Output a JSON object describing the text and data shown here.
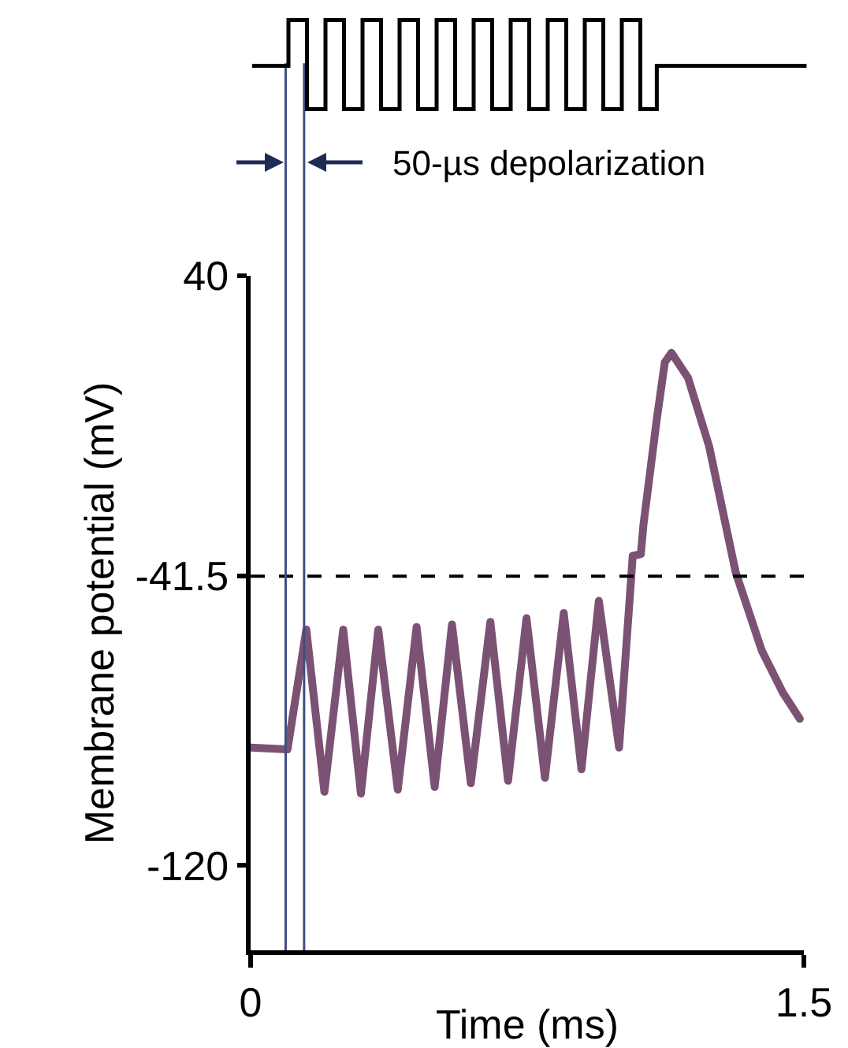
{
  "chart_data": {
    "type": "line",
    "xlabel": "Time (ms)",
    "ylabel": "Membrane potential (mV)",
    "x": [
      0,
      0.1,
      0.151,
      0.2,
      0.251,
      0.299,
      0.346,
      0.399,
      0.45,
      0.499,
      0.546,
      0.597,
      0.65,
      0.698,
      0.748,
      0.798,
      0.849,
      0.897,
      0.944,
      0.999,
      1.036,
      1.058,
      1.065,
      1.101,
      1.123,
      1.141,
      1.186,
      1.243,
      1.315,
      1.386,
      1.443,
      1.489
    ],
    "series": [
      {
        "color": "#7b5274",
        "values": [
          -88,
          -88.5,
          -56,
          -100,
          -56,
          -100.5,
          -56,
          -99.4,
          -55.3,
          -98.7,
          -54.6,
          -97.7,
          -53.9,
          -97,
          -52.9,
          -96.2,
          -51.5,
          -93.9,
          -48.2,
          -88,
          -36,
          -35.5,
          -27.6,
          0.9,
          16.5,
          19.1,
          12.3,
          -6.2,
          -40.4,
          -61.7,
          -73.1,
          -80.2
        ]
      }
    ],
    "xlim": [
      0,
      1.5
    ],
    "ylim": [
      -143,
      40
    ],
    "xticks": [
      0,
      1.5
    ],
    "yticks": [
      40,
      -41.5,
      -120
    ],
    "grid": false,
    "legend": false,
    "marker": "none",
    "line_style": "solid",
    "ref_lines": [
      {
        "axis": "y",
        "value": -41.5,
        "color": "#000000",
        "line_style": "dashed"
      },
      {
        "axis": "x",
        "value": 0.095,
        "color": "#3f4f80"
      },
      {
        "axis": "x",
        "value": 0.145,
        "color": "#3f4f80"
      }
    ],
    "annotations": [
      "50-µs depolarization"
    ]
  }
}
